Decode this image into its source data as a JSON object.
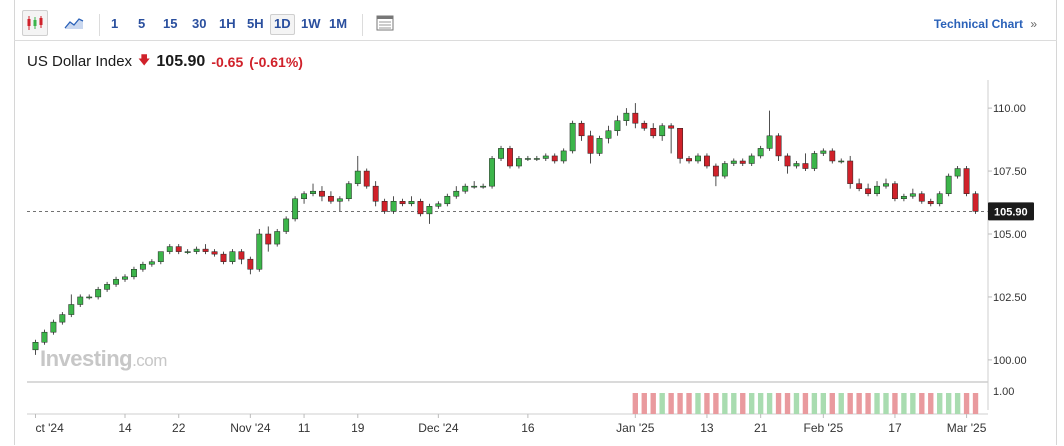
{
  "toolbar": {
    "candles_icon": "candlestick-icon",
    "area_icon": "area-chart-icon",
    "timeframes": [
      "1",
      "5",
      "15",
      "30",
      "1H",
      "5H",
      "1D",
      "1W",
      "1M"
    ],
    "active_timeframe": "1D",
    "table_icon": "table-view-icon",
    "tech_link": "Technical Chart",
    "tech_arrow": "»"
  },
  "header": {
    "name": "US Dollar Index",
    "price": "105.90",
    "change": "-0.65",
    "change_pct": "(-0.61%)"
  },
  "watermark": {
    "main": "Investing",
    "suffix": ".com"
  },
  "colors": {
    "up": "#3cb54a",
    "down": "#d0212a",
    "vol_up": "#a9dcb0",
    "vol_down": "#e99a9e",
    "accent": "#2a4f9e"
  },
  "chart_data": {
    "type": "candlestick",
    "y_ticks": [
      "110.00",
      "107.50",
      "105.00",
      "102.50",
      "100.00"
    ],
    "ylim": [
      99.4,
      110.6
    ],
    "last_price_label": "105.90",
    "last_price": 105.9,
    "volume_tick": "1.00",
    "x_labels": [
      "ct '24",
      "14",
      "22",
      "Nov '24",
      "11",
      "19",
      "Dec '24",
      "16",
      "Jan '25",
      "13",
      "21",
      "Feb '25",
      "17",
      "Mar '25"
    ],
    "x_label_index": [
      0,
      10,
      16,
      24,
      30,
      36,
      45,
      55,
      67,
      75,
      81,
      88,
      96,
      104
    ],
    "candles": [
      [
        100.4,
        100.7,
        100.2,
        100.8
      ],
      [
        100.7,
        101.1,
        100.6,
        101.2
      ],
      [
        101.1,
        101.5,
        101.0,
        101.6
      ],
      [
        101.5,
        101.8,
        101.4,
        101.9
      ],
      [
        101.8,
        102.2,
        101.7,
        102.6
      ],
      [
        102.2,
        102.5,
        102.1,
        102.6
      ],
      [
        102.5,
        102.5,
        102.4,
        102.6
      ],
      [
        102.5,
        102.8,
        102.4,
        102.9
      ],
      [
        102.8,
        103.0,
        102.7,
        103.1
      ],
      [
        103.0,
        103.2,
        102.9,
        103.3
      ],
      [
        103.2,
        103.3,
        103.1,
        103.4
      ],
      [
        103.3,
        103.6,
        103.2,
        103.7
      ],
      [
        103.6,
        103.8,
        103.5,
        103.9
      ],
      [
        103.8,
        103.9,
        103.7,
        104.0
      ],
      [
        103.9,
        104.3,
        103.8,
        104.3
      ],
      [
        104.3,
        104.5,
        104.2,
        104.6
      ],
      [
        104.5,
        104.3,
        104.2,
        104.6
      ],
      [
        104.3,
        104.3,
        104.2,
        104.4
      ],
      [
        104.3,
        104.4,
        104.2,
        104.5
      ],
      [
        104.4,
        104.3,
        104.2,
        104.6
      ],
      [
        104.3,
        104.2,
        104.1,
        104.4
      ],
      [
        104.2,
        103.9,
        103.8,
        104.3
      ],
      [
        103.9,
        104.3,
        103.8,
        104.4
      ],
      [
        104.3,
        104.0,
        103.8,
        104.4
      ],
      [
        104.0,
        103.6,
        103.4,
        104.1
      ],
      [
        103.6,
        105.0,
        103.5,
        105.2
      ],
      [
        105.0,
        104.6,
        104.3,
        105.3
      ],
      [
        104.6,
        105.1,
        104.5,
        105.2
      ],
      [
        105.1,
        105.6,
        105.0,
        105.7
      ],
      [
        105.6,
        106.4,
        105.5,
        106.5
      ],
      [
        106.4,
        106.6,
        106.2,
        106.7
      ],
      [
        106.6,
        106.7,
        106.5,
        107.0
      ],
      [
        106.7,
        106.5,
        106.3,
        106.9
      ],
      [
        106.5,
        106.3,
        106.2,
        106.7
      ],
      [
        106.3,
        106.4,
        105.9,
        106.5
      ],
      [
        106.4,
        107.0,
        106.3,
        107.1
      ],
      [
        107.0,
        107.5,
        106.9,
        108.1
      ],
      [
        107.5,
        106.9,
        106.8,
        107.6
      ],
      [
        106.9,
        106.3,
        106.1,
        107.1
      ],
      [
        106.3,
        105.9,
        105.8,
        106.4
      ],
      [
        105.9,
        106.3,
        105.8,
        106.5
      ],
      [
        106.3,
        106.2,
        106.1,
        106.4
      ],
      [
        106.2,
        106.3,
        106.1,
        106.5
      ],
      [
        106.3,
        105.8,
        105.7,
        106.4
      ],
      [
        105.8,
        106.1,
        105.4,
        106.2
      ],
      [
        106.1,
        106.2,
        106.0,
        106.3
      ],
      [
        106.2,
        106.5,
        106.1,
        106.6
      ],
      [
        106.5,
        106.7,
        106.4,
        106.9
      ],
      [
        106.7,
        106.9,
        106.6,
        107.0
      ],
      [
        106.9,
        106.9,
        106.8,
        107.1
      ],
      [
        106.9,
        106.9,
        106.8,
        107.0
      ],
      [
        106.9,
        108.0,
        106.8,
        108.1
      ],
      [
        108.0,
        108.4,
        107.9,
        108.5
      ],
      [
        108.4,
        107.7,
        107.6,
        108.5
      ],
      [
        107.7,
        108.0,
        107.6,
        108.1
      ],
      [
        108.0,
        108.0,
        107.9,
        108.1
      ],
      [
        108.0,
        108.0,
        107.9,
        108.1
      ],
      [
        108.0,
        108.1,
        107.9,
        108.2
      ],
      [
        108.1,
        107.9,
        107.8,
        108.2
      ],
      [
        107.9,
        108.3,
        107.8,
        108.4
      ],
      [
        108.3,
        109.4,
        108.2,
        109.5
      ],
      [
        109.4,
        108.9,
        108.7,
        109.5
      ],
      [
        108.9,
        108.2,
        107.8,
        109.1
      ],
      [
        108.2,
        108.8,
        108.1,
        108.9
      ],
      [
        108.8,
        109.1,
        108.6,
        109.3
      ],
      [
        109.1,
        109.5,
        108.9,
        109.7
      ],
      [
        109.5,
        109.8,
        109.3,
        110.0
      ],
      [
        109.8,
        109.4,
        109.2,
        110.2
      ],
      [
        109.4,
        109.2,
        109.1,
        109.5
      ],
      [
        109.2,
        108.9,
        108.8,
        109.4
      ],
      [
        108.9,
        109.3,
        108.7,
        109.4
      ],
      [
        109.3,
        109.2,
        108.2,
        109.4
      ],
      [
        109.2,
        108.0,
        107.8,
        109.2
      ],
      [
        108.0,
        107.9,
        107.8,
        108.1
      ],
      [
        107.9,
        108.1,
        107.8,
        108.2
      ],
      [
        108.1,
        107.7,
        107.6,
        108.2
      ],
      [
        107.7,
        107.3,
        106.9,
        107.8
      ],
      [
        107.3,
        107.8,
        107.2,
        107.9
      ],
      [
        107.8,
        107.9,
        107.7,
        108.0
      ],
      [
        107.9,
        107.8,
        107.7,
        108.0
      ],
      [
        107.8,
        108.1,
        107.7,
        108.2
      ],
      [
        108.1,
        108.4,
        108.0,
        108.5
      ],
      [
        108.4,
        108.9,
        108.3,
        109.9
      ],
      [
        108.9,
        108.1,
        107.9,
        109.0
      ],
      [
        108.1,
        107.7,
        107.4,
        108.2
      ],
      [
        107.7,
        107.8,
        107.6,
        107.9
      ],
      [
        107.8,
        107.6,
        107.5,
        108.2
      ],
      [
        107.6,
        108.2,
        107.5,
        108.3
      ],
      [
        108.2,
        108.3,
        108.1,
        108.4
      ],
      [
        108.3,
        107.9,
        107.8,
        108.4
      ],
      [
        107.9,
        107.9,
        107.8,
        108.0
      ],
      [
        107.9,
        107.0,
        106.8,
        108.1
      ],
      [
        107.0,
        106.8,
        106.7,
        107.2
      ],
      [
        106.8,
        106.6,
        106.5,
        107.0
      ],
      [
        106.6,
        106.9,
        106.5,
        107.1
      ],
      [
        106.9,
        107.0,
        106.8,
        107.2
      ],
      [
        107.0,
        106.4,
        106.3,
        107.1
      ],
      [
        106.4,
        106.5,
        106.3,
        106.6
      ],
      [
        106.5,
        106.6,
        106.4,
        106.8
      ],
      [
        106.6,
        106.3,
        106.2,
        106.7
      ],
      [
        106.3,
        106.2,
        106.1,
        106.4
      ],
      [
        106.2,
        106.6,
        106.1,
        106.7
      ],
      [
        106.6,
        107.3,
        106.5,
        107.4
      ],
      [
        107.3,
        107.6,
        107.2,
        107.7
      ],
      [
        107.6,
        106.6,
        106.5,
        107.7
      ],
      [
        106.6,
        105.9,
        105.8,
        106.7
      ]
    ],
    "volume": [
      "",
      "",
      "",
      "",
      "",
      "",
      "",
      "",
      "",
      "",
      "",
      "",
      "",
      "",
      "",
      "",
      "",
      "",
      "",
      "",
      "",
      "",
      "",
      "",
      "",
      "",
      "",
      "",
      "",
      "",
      "",
      "",
      "",
      "",
      "",
      "",
      "",
      "",
      "",
      "",
      "",
      "",
      "",
      "",
      "",
      "",
      "",
      "",
      "",
      "",
      "",
      "",
      "",
      "",
      "",
      "",
      "",
      "",
      "",
      "",
      "",
      "",
      "",
      "",
      "",
      "",
      "",
      "",
      "",
      "",
      "",
      "",
      "",
      "",
      "",
      "",
      "",
      "",
      "",
      "",
      "",
      "",
      "",
      "",
      "",
      "",
      "",
      "",
      "",
      "",
      "",
      "",
      "",
      "",
      "",
      "",
      "",
      "",
      "",
      "",
      "",
      "",
      "",
      "",
      "",
      "",
      ""
    ]
  }
}
